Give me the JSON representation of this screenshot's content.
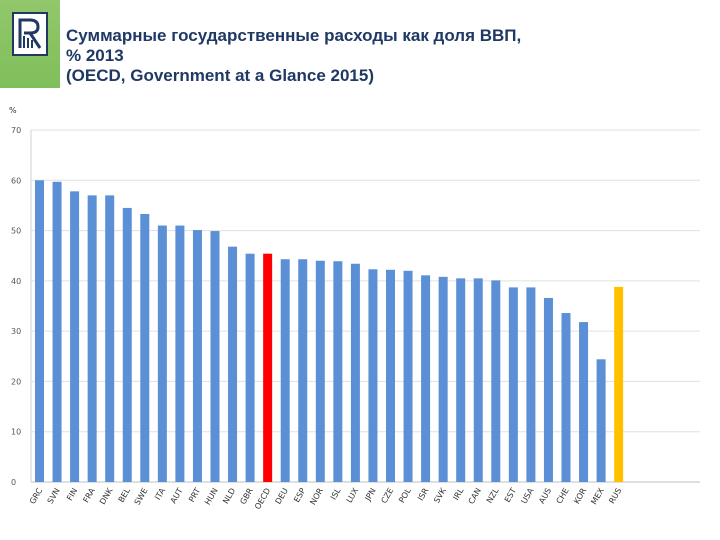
{
  "header": {
    "title": "Суммарные государственные расходы как доля ВВП,\n% 2013\n(OECD, Government at a Glance 2015)"
  },
  "colors": {
    "bar": "#5b8fd6",
    "highlight_oecd": "#ff0000",
    "highlight_rus": "#ffc000",
    "logo_bg": "#8bc34a"
  },
  "chart_data": {
    "type": "bar",
    "unit_label": "%",
    "ylim": [
      0,
      70
    ],
    "yticks": [
      0,
      10,
      20,
      30,
      40,
      50,
      60,
      70
    ],
    "grid": true,
    "categories": [
      "GRC",
      "SVN",
      "FIN",
      "FRA",
      "DNK",
      "BEL",
      "SWE",
      "ITA",
      "AUT",
      "PRT",
      "HUN",
      "NLD",
      "GBR",
      "OECD",
      "DEU",
      "ESP",
      "NOR",
      "ISL",
      "LUX",
      "JPN",
      "CZE",
      "POL",
      "ISR",
      "SVK",
      "IRL",
      "CAN",
      "NZL",
      "EST",
      "USA",
      "AUS",
      "CHE",
      "KOR",
      "MEX",
      "RUS"
    ],
    "values": [
      60.0,
      59.7,
      57.8,
      57.0,
      57.0,
      54.5,
      53.3,
      51.0,
      51.0,
      50.1,
      49.9,
      46.8,
      45.4,
      45.4,
      44.3,
      44.3,
      44.0,
      43.9,
      43.4,
      42.3,
      42.2,
      42.0,
      41.1,
      40.8,
      40.5,
      40.5,
      40.1,
      38.7,
      38.7,
      36.6,
      33.6,
      31.8,
      24.4,
      38.8
    ],
    "highlight": {
      "OECD": "highlight_oecd",
      "RUS": "highlight_rus"
    }
  }
}
